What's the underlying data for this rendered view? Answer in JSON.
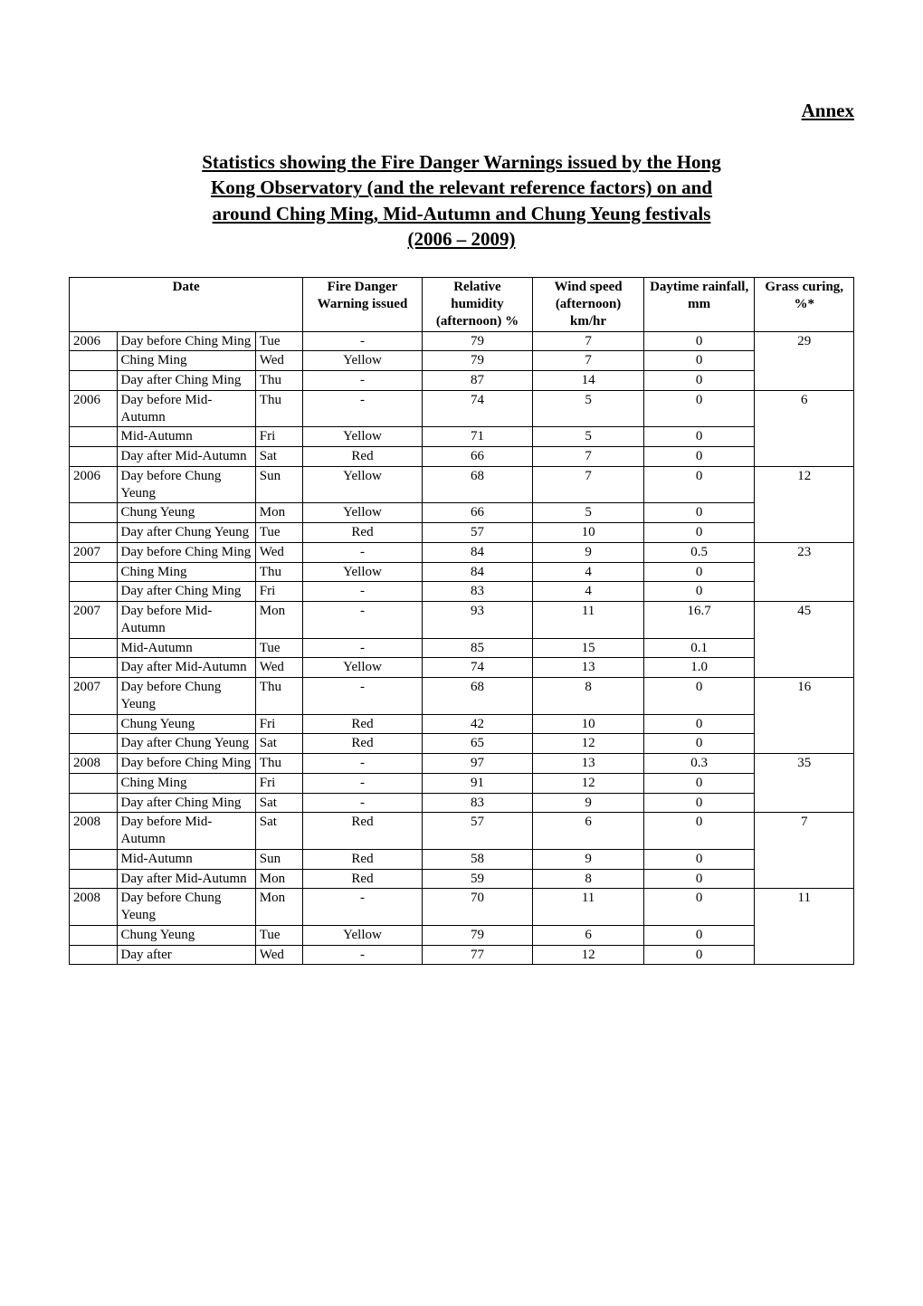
{
  "annex_label": "Annex",
  "title_lines": [
    "Statistics showing the Fire Danger Warnings issued by the Hong",
    "Kong Observatory (and the relevant reference factors) on and",
    "around Ching Ming, Mid-Autumn and Chung Yeung festivals",
    "(2006 – 2009)"
  ],
  "headers": {
    "date": "Date",
    "fire_danger": "Fire Danger Warning issued",
    "humidity": "Relative humidity (afternoon) %",
    "wind": "Wind speed (afternoon) km/hr",
    "rainfall": "Daytime rainfall, mm",
    "grass": "Grass curing, %*"
  },
  "table": {
    "font_size": 15,
    "border_color": "#000000",
    "background_color": "#ffffff",
    "text_color": "#000000"
  },
  "groups": [
    {
      "year": "2006",
      "grass": "29",
      "rows": [
        {
          "desc": "Day before Ching Ming",
          "dow": "Tue",
          "warn": "-",
          "hum": "79",
          "wind": "7",
          "rain": "0"
        },
        {
          "desc": "Ching Ming",
          "dow": "Wed",
          "warn": "Yellow",
          "hum": "79",
          "wind": "7",
          "rain": "0"
        },
        {
          "desc": "Day after Ching Ming",
          "dow": "Thu",
          "warn": "-",
          "hum": "87",
          "wind": "14",
          "rain": "0"
        }
      ]
    },
    {
      "year": "2006",
      "grass": "6",
      "rows": [
        {
          "desc": "Day before Mid-Autumn",
          "dow": "Thu",
          "warn": "-",
          "hum": "74",
          "wind": "5",
          "rain": "0"
        },
        {
          "desc": "Mid-Autumn",
          "dow": "Fri",
          "warn": "Yellow",
          "hum": "71",
          "wind": "5",
          "rain": "0"
        },
        {
          "desc": "Day after Mid-Autumn",
          "dow": "Sat",
          "warn": "Red",
          "hum": "66",
          "wind": "7",
          "rain": "0"
        }
      ]
    },
    {
      "year": "2006",
      "grass": "12",
      "rows": [
        {
          "desc": "Day before Chung Yeung",
          "dow": "Sun",
          "warn": "Yellow",
          "hum": "68",
          "wind": "7",
          "rain": "0"
        },
        {
          "desc": "Chung Yeung",
          "dow": "Mon",
          "warn": "Yellow",
          "hum": "66",
          "wind": "5",
          "rain": "0"
        },
        {
          "desc": "Day after Chung Yeung",
          "dow": "Tue",
          "warn": "Red",
          "hum": "57",
          "wind": "10",
          "rain": "0"
        }
      ]
    },
    {
      "year": "2007",
      "grass": "23",
      "rows": [
        {
          "desc": "Day before Ching Ming",
          "dow": "Wed",
          "warn": "-",
          "hum": "84",
          "wind": "9",
          "rain": "0.5"
        },
        {
          "desc": "Ching Ming",
          "dow": "Thu",
          "warn": "Yellow",
          "hum": "84",
          "wind": "4",
          "rain": "0"
        },
        {
          "desc": "Day after Ching Ming",
          "dow": "Fri",
          "warn": "-",
          "hum": "83",
          "wind": "4",
          "rain": "0"
        }
      ]
    },
    {
      "year": "2007",
      "grass": "45",
      "rows": [
        {
          "desc": "Day before Mid-Autumn",
          "dow": "Mon",
          "warn": "-",
          "hum": "93",
          "wind": "11",
          "rain": "16.7"
        },
        {
          "desc": "Mid-Autumn",
          "dow": "Tue",
          "warn": "-",
          "hum": "85",
          "wind": "15",
          "rain": "0.1"
        },
        {
          "desc": "Day after Mid-Autumn",
          "dow": "Wed",
          "warn": "Yellow",
          "hum": "74",
          "wind": "13",
          "rain": "1.0"
        }
      ]
    },
    {
      "year": "2007",
      "grass": "16",
      "rows": [
        {
          "desc": "Day before Chung Yeung",
          "dow": "Thu",
          "warn": "-",
          "hum": "68",
          "wind": "8",
          "rain": "0"
        },
        {
          "desc": "Chung Yeung",
          "dow": "Fri",
          "warn": "Red",
          "hum": "42",
          "wind": "10",
          "rain": "0"
        },
        {
          "desc": "Day after Chung Yeung",
          "dow": "Sat",
          "warn": "Red",
          "hum": "65",
          "wind": "12",
          "rain": "0"
        }
      ]
    },
    {
      "year": "2008",
      "grass": "35",
      "rows": [
        {
          "desc": "Day before Ching Ming",
          "dow": "Thu",
          "warn": "-",
          "hum": "97",
          "wind": "13",
          "rain": "0.3"
        },
        {
          "desc": "Ching Ming",
          "dow": "Fri",
          "warn": "-",
          "hum": "91",
          "wind": "12",
          "rain": "0"
        },
        {
          "desc": "Day after Ching Ming",
          "dow": "Sat",
          "warn": "-",
          "hum": "83",
          "wind": "9",
          "rain": "0"
        }
      ]
    },
    {
      "year": "2008",
      "grass": "7",
      "rows": [
        {
          "desc": "Day before Mid-Autumn",
          "dow": "Sat",
          "warn": "Red",
          "hum": "57",
          "wind": "6",
          "rain": "0"
        },
        {
          "desc": "Mid-Autumn",
          "dow": "Sun",
          "warn": "Red",
          "hum": "58",
          "wind": "9",
          "rain": "0"
        },
        {
          "desc": "Day after Mid-Autumn",
          "dow": "Mon",
          "warn": "Red",
          "hum": "59",
          "wind": "8",
          "rain": "0"
        }
      ]
    },
    {
      "year": "2008",
      "grass": "11",
      "rows": [
        {
          "desc": "Day before Chung Yeung",
          "dow": "Mon",
          "warn": "-",
          "hum": "70",
          "wind": "11",
          "rain": "0"
        },
        {
          "desc": "Chung Yeung",
          "dow": "Tue",
          "warn": "Yellow",
          "hum": "79",
          "wind": "6",
          "rain": "0"
        },
        {
          "desc": "Day after",
          "dow": "Wed",
          "warn": "-",
          "hum": "77",
          "wind": "12",
          "rain": "0"
        }
      ]
    }
  ]
}
